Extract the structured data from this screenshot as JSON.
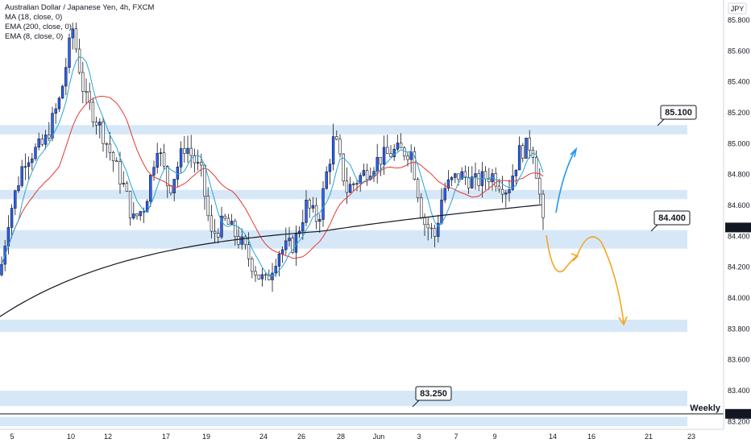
{
  "chart_data": {
    "type": "candlestick",
    "title": "Australian Dollar / Japanese Yen, 4h, FXCM",
    "currency": "JPY",
    "indicators": [
      "MA (18, close, 0)",
      "EMA (200, close, 0)",
      "EMA (8, close, 0)"
    ],
    "ylim": [
      83.15,
      85.93
    ],
    "y_ticks": [
      "85.800",
      "85.600",
      "85.400",
      "85.200",
      "85.000",
      "84.800",
      "84.600",
      "84.457",
      "84.400",
      "84.200",
      "84.000",
      "83.800",
      "83.600",
      "83.400",
      "83.200"
    ],
    "x_ticks": [
      "5",
      "10",
      "12",
      "17",
      "19",
      "24",
      "26",
      "28",
      "Jun",
      "3",
      "7",
      "9",
      "14",
      "16",
      "21",
      "23"
    ],
    "price_labels": [
      {
        "value": 84.457,
        "text": "84.457",
        "color": "#ffffff"
      },
      {
        "value": 83.25,
        "text": "83.250",
        "color": "#131722"
      }
    ],
    "zones": [
      {
        "low": 85.06,
        "high": 85.12
      },
      {
        "low": 84.64,
        "high": 84.7
      },
      {
        "low": 84.32,
        "high": 84.44
      },
      {
        "low": 83.78,
        "high": 83.86
      },
      {
        "low": 83.3,
        "high": 83.4
      },
      {
        "low": 83.17,
        "high": 83.23
      }
    ],
    "callouts": [
      {
        "text": "85.100",
        "value": 85.1
      },
      {
        "text": "84.400",
        "value": 84.4
      },
      {
        "text": "83.250",
        "value": 83.25
      }
    ],
    "weekly_line": {
      "value": 83.25,
      "label": "Weekly"
    },
    "forecast_colors": {
      "up": "#2196f3",
      "down": "#f5a623"
    },
    "candle_colors": {
      "up": "#2962ff",
      "down": "#ffffff",
      "wick": "#131722"
    }
  }
}
